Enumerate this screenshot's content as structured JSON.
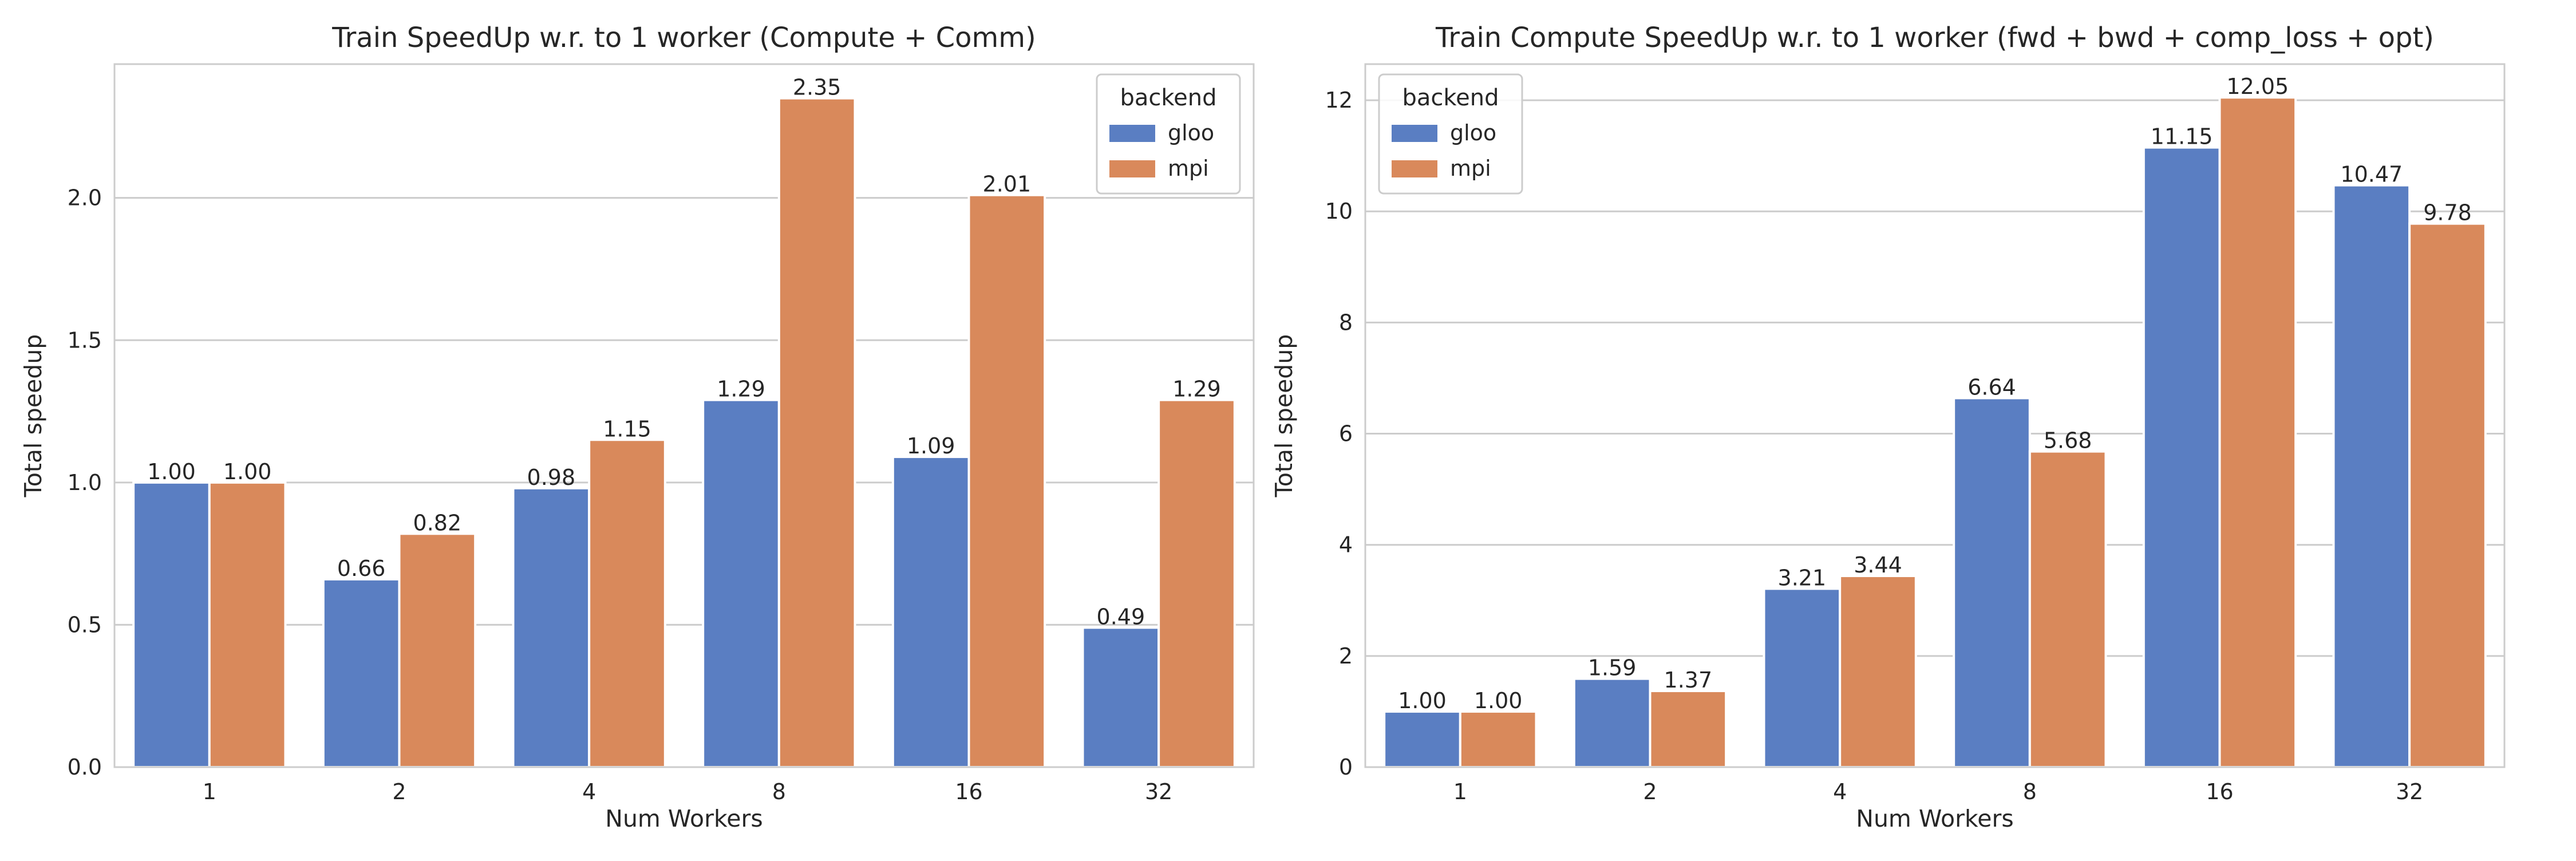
{
  "chart_data": [
    {
      "type": "bar",
      "title": "Train SpeedUp w.r. to 1 worker (Compute + Comm)",
      "xlabel": "Num Workers",
      "ylabel": "Total speedup",
      "categories": [
        "1",
        "2",
        "4",
        "8",
        "16",
        "32"
      ],
      "ylim": [
        0,
        2.47
      ],
      "yticks": [
        0.0,
        0.5,
        1.0,
        1.5,
        2.0
      ],
      "ytick_labels": [
        "0.0",
        "0.5",
        "1.0",
        "1.5",
        "2.0"
      ],
      "grid": "y",
      "legend": {
        "title": "backend",
        "position": "top-right"
      },
      "series": [
        {
          "name": "gloo",
          "color": "#5a7ec2",
          "values": [
            1.0,
            0.66,
            0.98,
            1.29,
            1.09,
            0.49
          ],
          "labels": [
            "1.00",
            "0.66",
            "0.98",
            "1.29",
            "1.09",
            "0.49"
          ]
        },
        {
          "name": "mpi",
          "color": "#d9895b",
          "values": [
            1.0,
            0.82,
            1.15,
            2.35,
            2.01,
            1.29
          ],
          "labels": [
            "1.00",
            "0.82",
            "1.15",
            "2.35",
            "2.01",
            "1.29"
          ]
        }
      ]
    },
    {
      "type": "bar",
      "title": "Train Compute SpeedUp w.r. to 1 worker (fwd + bwd + comp_loss + opt)",
      "xlabel": "Num Workers",
      "ylabel": "Total speedup",
      "categories": [
        "1",
        "2",
        "4",
        "8",
        "16",
        "32"
      ],
      "ylim": [
        0,
        12.65
      ],
      "yticks": [
        0,
        2,
        4,
        6,
        8,
        10,
        12
      ],
      "ytick_labels": [
        "0",
        "2",
        "4",
        "6",
        "8",
        "10",
        "12"
      ],
      "grid": "y",
      "legend": {
        "title": "backend",
        "position": "top-left"
      },
      "series": [
        {
          "name": "gloo",
          "color": "#5a7ec2",
          "values": [
            1.0,
            1.59,
            3.21,
            6.64,
            11.15,
            10.47
          ],
          "labels": [
            "1.00",
            "1.59",
            "3.21",
            "6.64",
            "11.15",
            "10.47"
          ]
        },
        {
          "name": "mpi",
          "color": "#d9895b",
          "values": [
            1.0,
            1.37,
            3.44,
            5.68,
            12.05,
            9.78
          ],
          "labels": [
            "1.00",
            "1.37",
            "3.44",
            "5.68",
            "12.05",
            "9.78"
          ]
        }
      ]
    }
  ]
}
